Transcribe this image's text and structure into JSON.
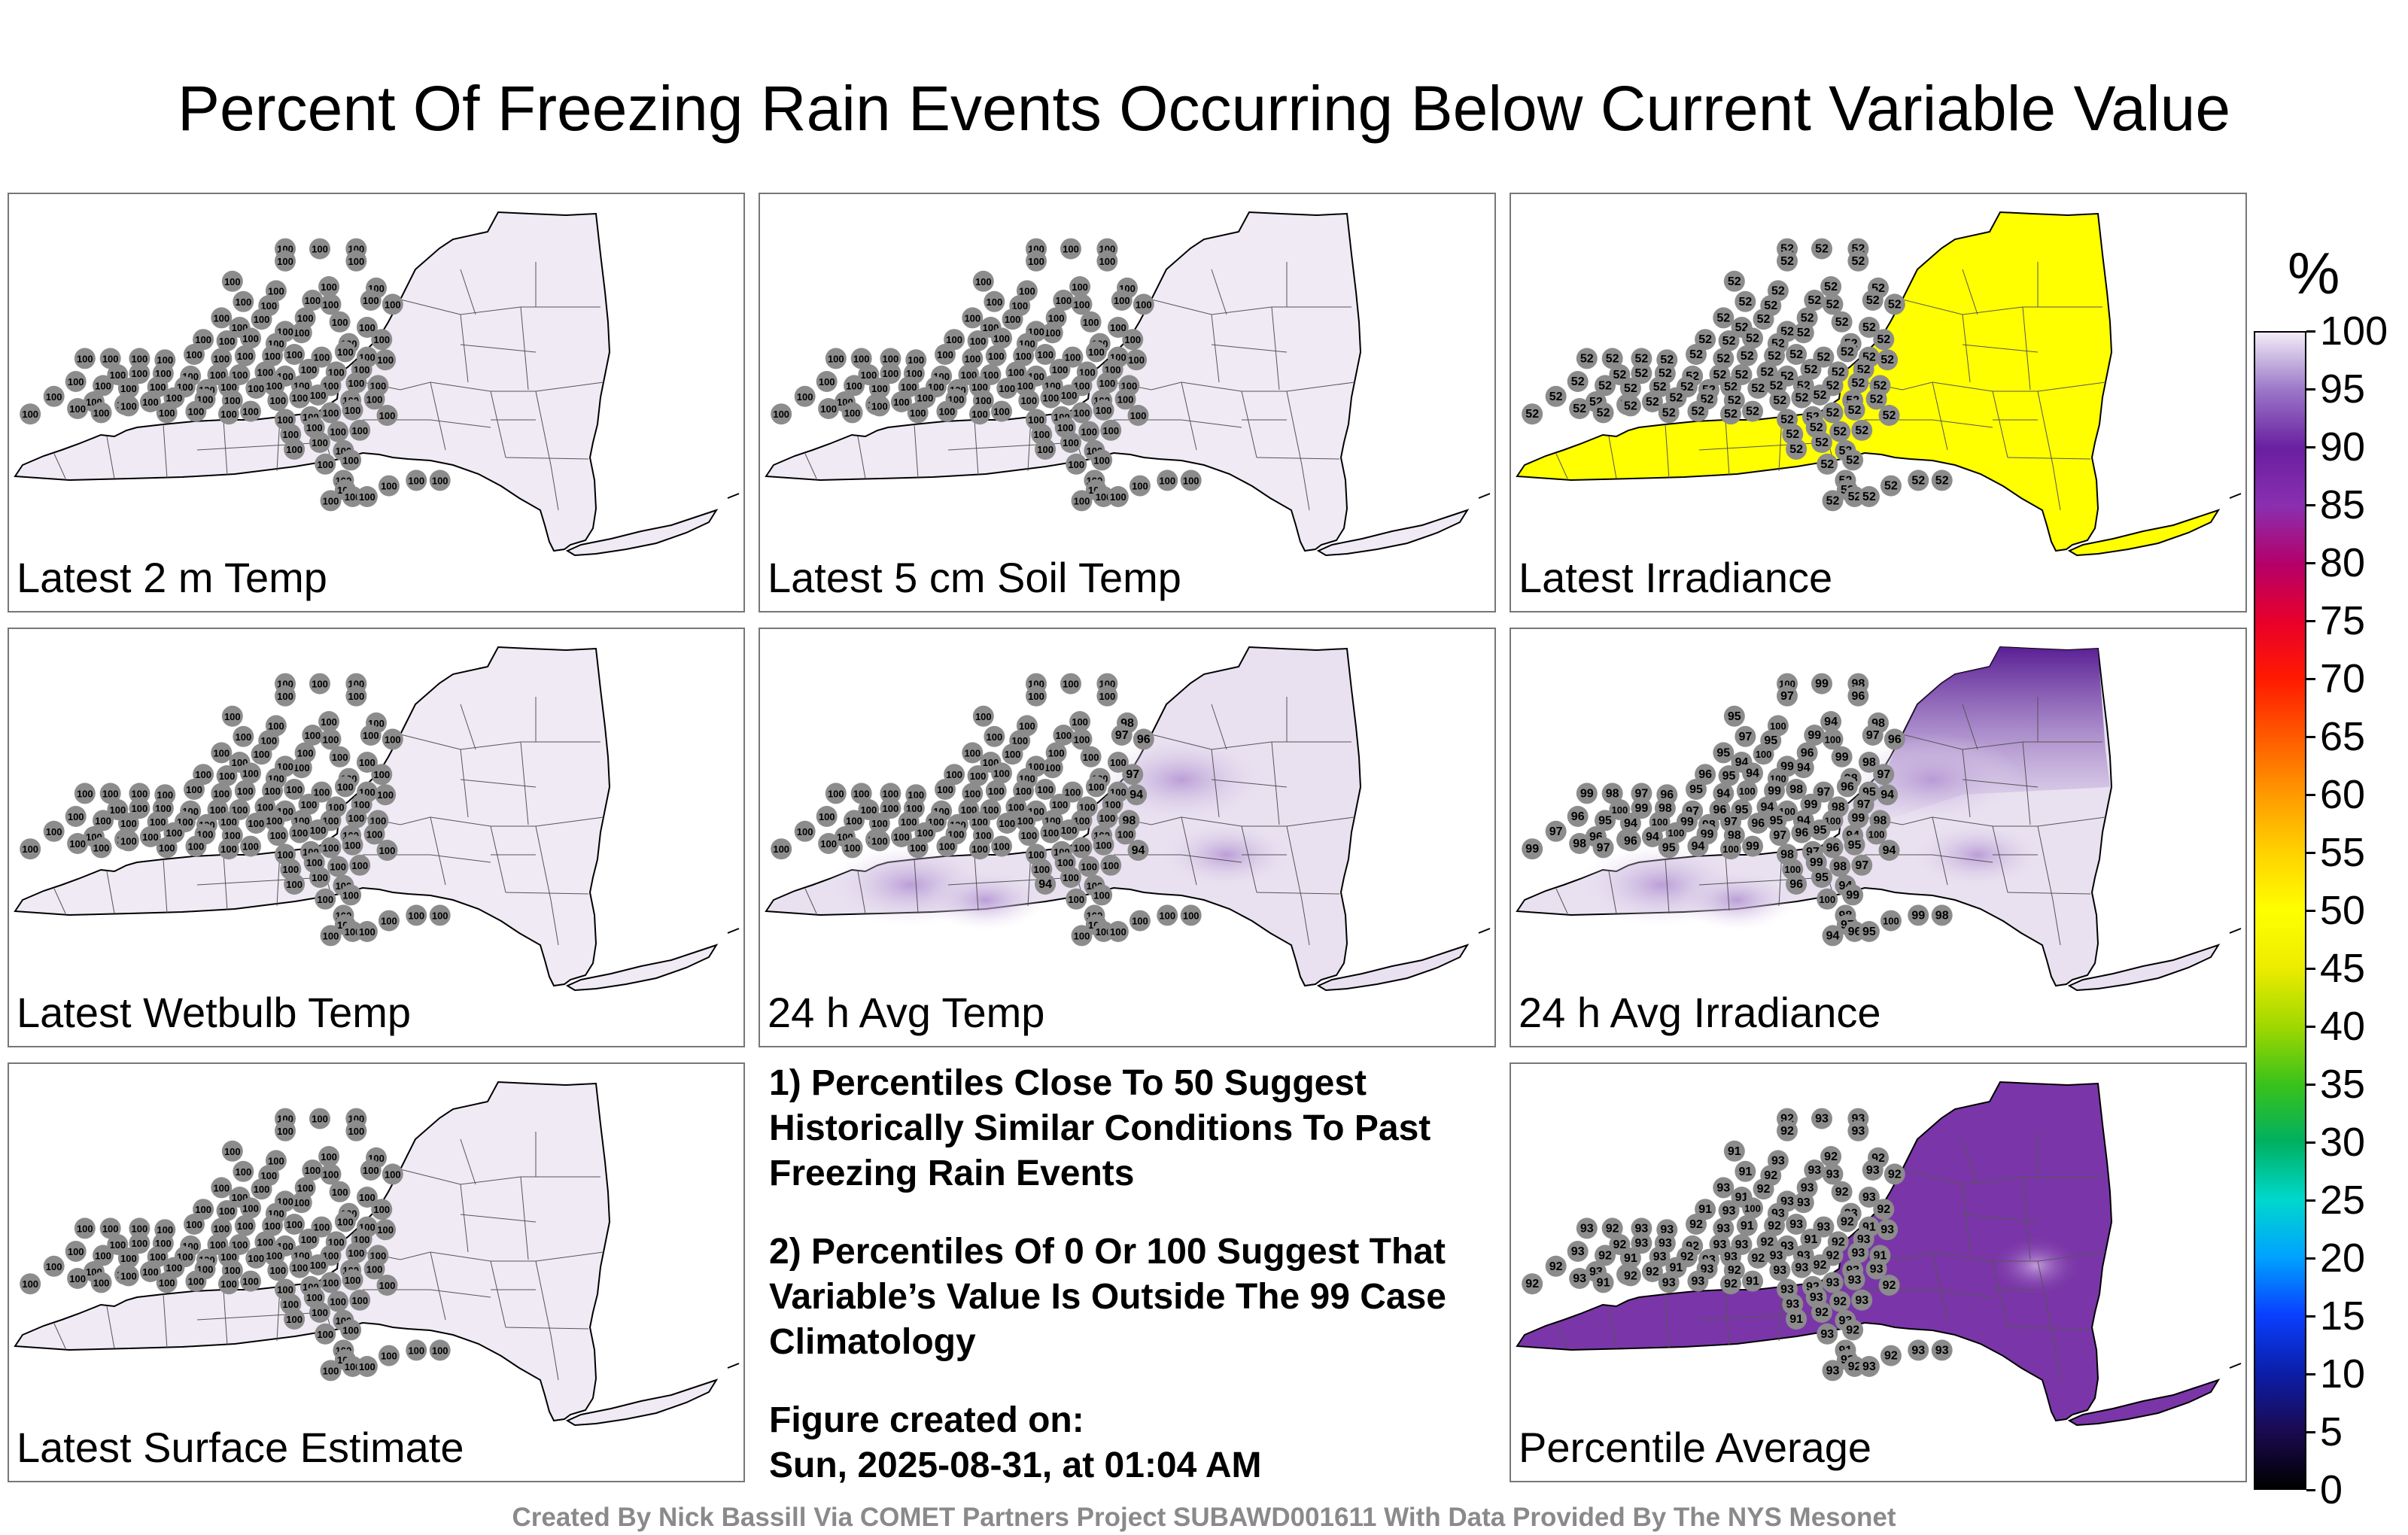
{
  "title": "Percent Of Freezing Rain Events Occurring Below Current Variable Value",
  "colorbar": {
    "unit": "%",
    "ticks": [
      "100",
      "95",
      "90",
      "85",
      "80",
      "75",
      "70",
      "65",
      "60",
      "55",
      "50",
      "45",
      "40",
      "35",
      "30",
      "25",
      "20",
      "15",
      "10",
      "5",
      "0"
    ],
    "colors": [
      "#000000",
      "#1b0a52",
      "#0b1ea8",
      "#0a3fff",
      "#00a2ff",
      "#00d8cc",
      "#00b060",
      "#3ac21a",
      "#a0d800",
      "#ecec00",
      "#ffff00",
      "#ffd200",
      "#ff9a00",
      "#ff5a00",
      "#ff1a00",
      "#e8002a",
      "#b4006a",
      "#8a2fb0",
      "#6a1fa0",
      "#9a76c8",
      "#f2ecf6"
    ]
  },
  "notes": {
    "note1": "1) Percentiles Close To 50 Suggest Historically Similar Conditions To Past Freezing Rain Events",
    "note2": "2) Percentiles Of 0 Or 100 Suggest That Variable’s Value Is Outside The 99 Case Climatology",
    "created_label": "Figure created on:",
    "created_value": "Sun, 2025-08-31, at 01:04 AM"
  },
  "credit": "Created By Nick Bassill Via COMET Partners Project SUBAWD001611 With Data Provided By The NYS Mesonet",
  "chart_data": [
    {
      "type": "heatmap",
      "label": "Latest 2 m Temp",
      "fill": "#efeaf4",
      "station_values": [
        "100"
      ]
    },
    {
      "type": "heatmap",
      "label": "Latest 5 cm Soil Temp",
      "fill": "#efeaf4",
      "station_values": [
        "100"
      ]
    },
    {
      "type": "heatmap",
      "label": "Latest Irradiance",
      "fill": "#ffff00",
      "station_values": [
        "52"
      ]
    },
    {
      "type": "heatmap",
      "label": "Latest Wetbulb Temp",
      "fill": "#efeaf4",
      "station_values": [
        "100"
      ]
    },
    {
      "type": "heatmap",
      "label": "24 h Avg Temp",
      "fill": "#e9e1f0",
      "station_values": [
        "100",
        "99",
        "98",
        "97",
        "96",
        "95",
        "94"
      ]
    },
    {
      "type": "heatmap",
      "label": "24 h Avg Irradiance",
      "fill": "#e9e1f0",
      "station_values": [
        "100",
        "99",
        "98",
        "97",
        "96",
        "95",
        "94",
        "93",
        "92",
        "91",
        "90",
        "89"
      ]
    },
    {
      "type": "heatmap",
      "label": "Latest Surface Estimate",
      "fill": "#efeaf4",
      "station_values": [
        "100"
      ]
    },
    {
      "type": "heatmap",
      "label": "Percentile Average",
      "fill": "#7a36a8",
      "station_values": [
        "93",
        "92",
        "91",
        "100"
      ]
    }
  ]
}
